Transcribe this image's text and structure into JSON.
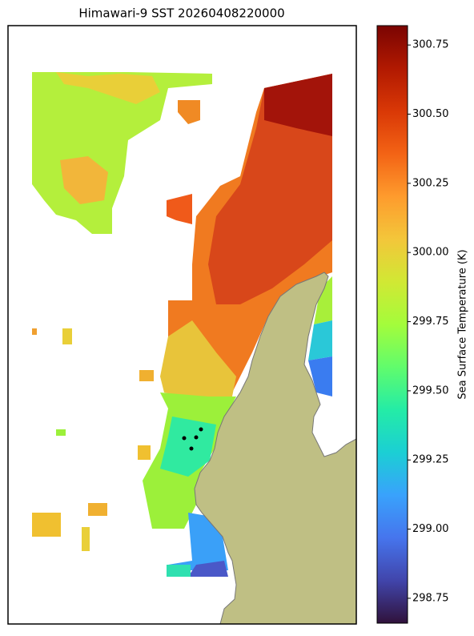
{
  "chart_data": {
    "type": "map",
    "title": "Himawari-9 SST 20260408220000",
    "colorbar": {
      "label": "Sea Surface Temperature (K)",
      "colormap": "turbo",
      "lim": [
        298.66,
        300.82
      ],
      "ticks": [
        298.75,
        {
          "value": 299,
          "label": "299.00"
        },
        299.25,
        {
          "value": 299.5,
          "label": "299.50"
        },
        299.75,
        {
          "value": 300,
          "label": "300.00"
        },
        300.25,
        {
          "value": 300.5,
          "label": "300.50"
        },
        300.75
      ]
    }
  }
}
